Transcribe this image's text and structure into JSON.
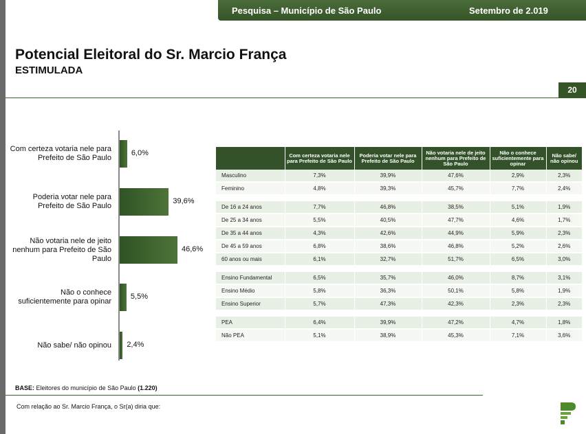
{
  "header": {
    "survey": "Pesquisa – Município de São Paulo",
    "date": "Setembro de 2.019"
  },
  "title": "Potencial Eleitoral do Sr. Marcio França",
  "subtitle": "ESTIMULADA",
  "page_number": "20",
  "chart_data": {
    "type": "bar",
    "orientation": "horizontal",
    "categories": [
      "Com certeza votaria nele para Prefeito de São Paulo",
      "Poderia votar nele para Prefeito de São Paulo",
      "Não votaria nele de jeito nenhum para Prefeito de São Paulo",
      "Não o conhece suficientemente para opinar",
      "Não sabe/ não opinou"
    ],
    "values": [
      6.0,
      39.6,
      46.6,
      5.5,
      2.4
    ],
    "value_labels": [
      "6,0%",
      "39,6%",
      "46,6%",
      "5,5%",
      "2,4%"
    ],
    "unit": "%",
    "xlim": [
      0,
      50
    ],
    "bar_color": "#3a5f2d",
    "grid": false
  },
  "table": {
    "headers": [
      "",
      "Com certeza votaria nele para Prefeito de São Paulo",
      "Poderia votar nele para Prefeito de São Paulo",
      "Não votaria nele de jeito nenhum para Prefeito de São Paulo",
      "Não o conhece suficientemente para opinar",
      "Não sabe/ não opinou"
    ],
    "groups": [
      [
        [
          "Masculino",
          "7,3%",
          "39,9%",
          "47,6%",
          "2,9%",
          "2,3%"
        ],
        [
          "Feminino",
          "4,8%",
          "39,3%",
          "45,7%",
          "7,7%",
          "2,4%"
        ]
      ],
      [
        [
          "De 16 a 24 anos",
          "7,7%",
          "46,8%",
          "38,5%",
          "5,1%",
          "1,9%"
        ],
        [
          "De 25 a 34 anos",
          "5,5%",
          "40,5%",
          "47,7%",
          "4,6%",
          "1,7%"
        ],
        [
          "De 35 a 44 anos",
          "4,3%",
          "42,6%",
          "44,9%",
          "5,9%",
          "2,3%"
        ],
        [
          "De 45 a 59 anos",
          "6,8%",
          "38,6%",
          "46,8%",
          "5,2%",
          "2,6%"
        ],
        [
          "60 anos ou mais",
          "6,1%",
          "32,7%",
          "51,7%",
          "6,5%",
          "3,0%"
        ]
      ],
      [
        [
          "Ensino Fundamental",
          "6,5%",
          "35,7%",
          "46,0%",
          "8,7%",
          "3,1%"
        ],
        [
          "Ensino Médio",
          "5,8%",
          "36,3%",
          "50,1%",
          "5,8%",
          "1,9%"
        ],
        [
          "Ensino Superior",
          "5,7%",
          "47,3%",
          "42,3%",
          "2,3%",
          "2,3%"
        ]
      ],
      [
        [
          "PEA",
          "6,4%",
          "39,9%",
          "47,2%",
          "4,7%",
          "1,8%"
        ],
        [
          "Não PEA",
          "5,1%",
          "38,9%",
          "45,3%",
          "7,1%",
          "3,6%"
        ]
      ]
    ]
  },
  "base": {
    "label": "BASE:",
    "text": " Eleitores do município de São Paulo ",
    "count": "(1.220)"
  },
  "question": "Com relação ao Sr. Marcio França, o Sr(a) diria que:"
}
